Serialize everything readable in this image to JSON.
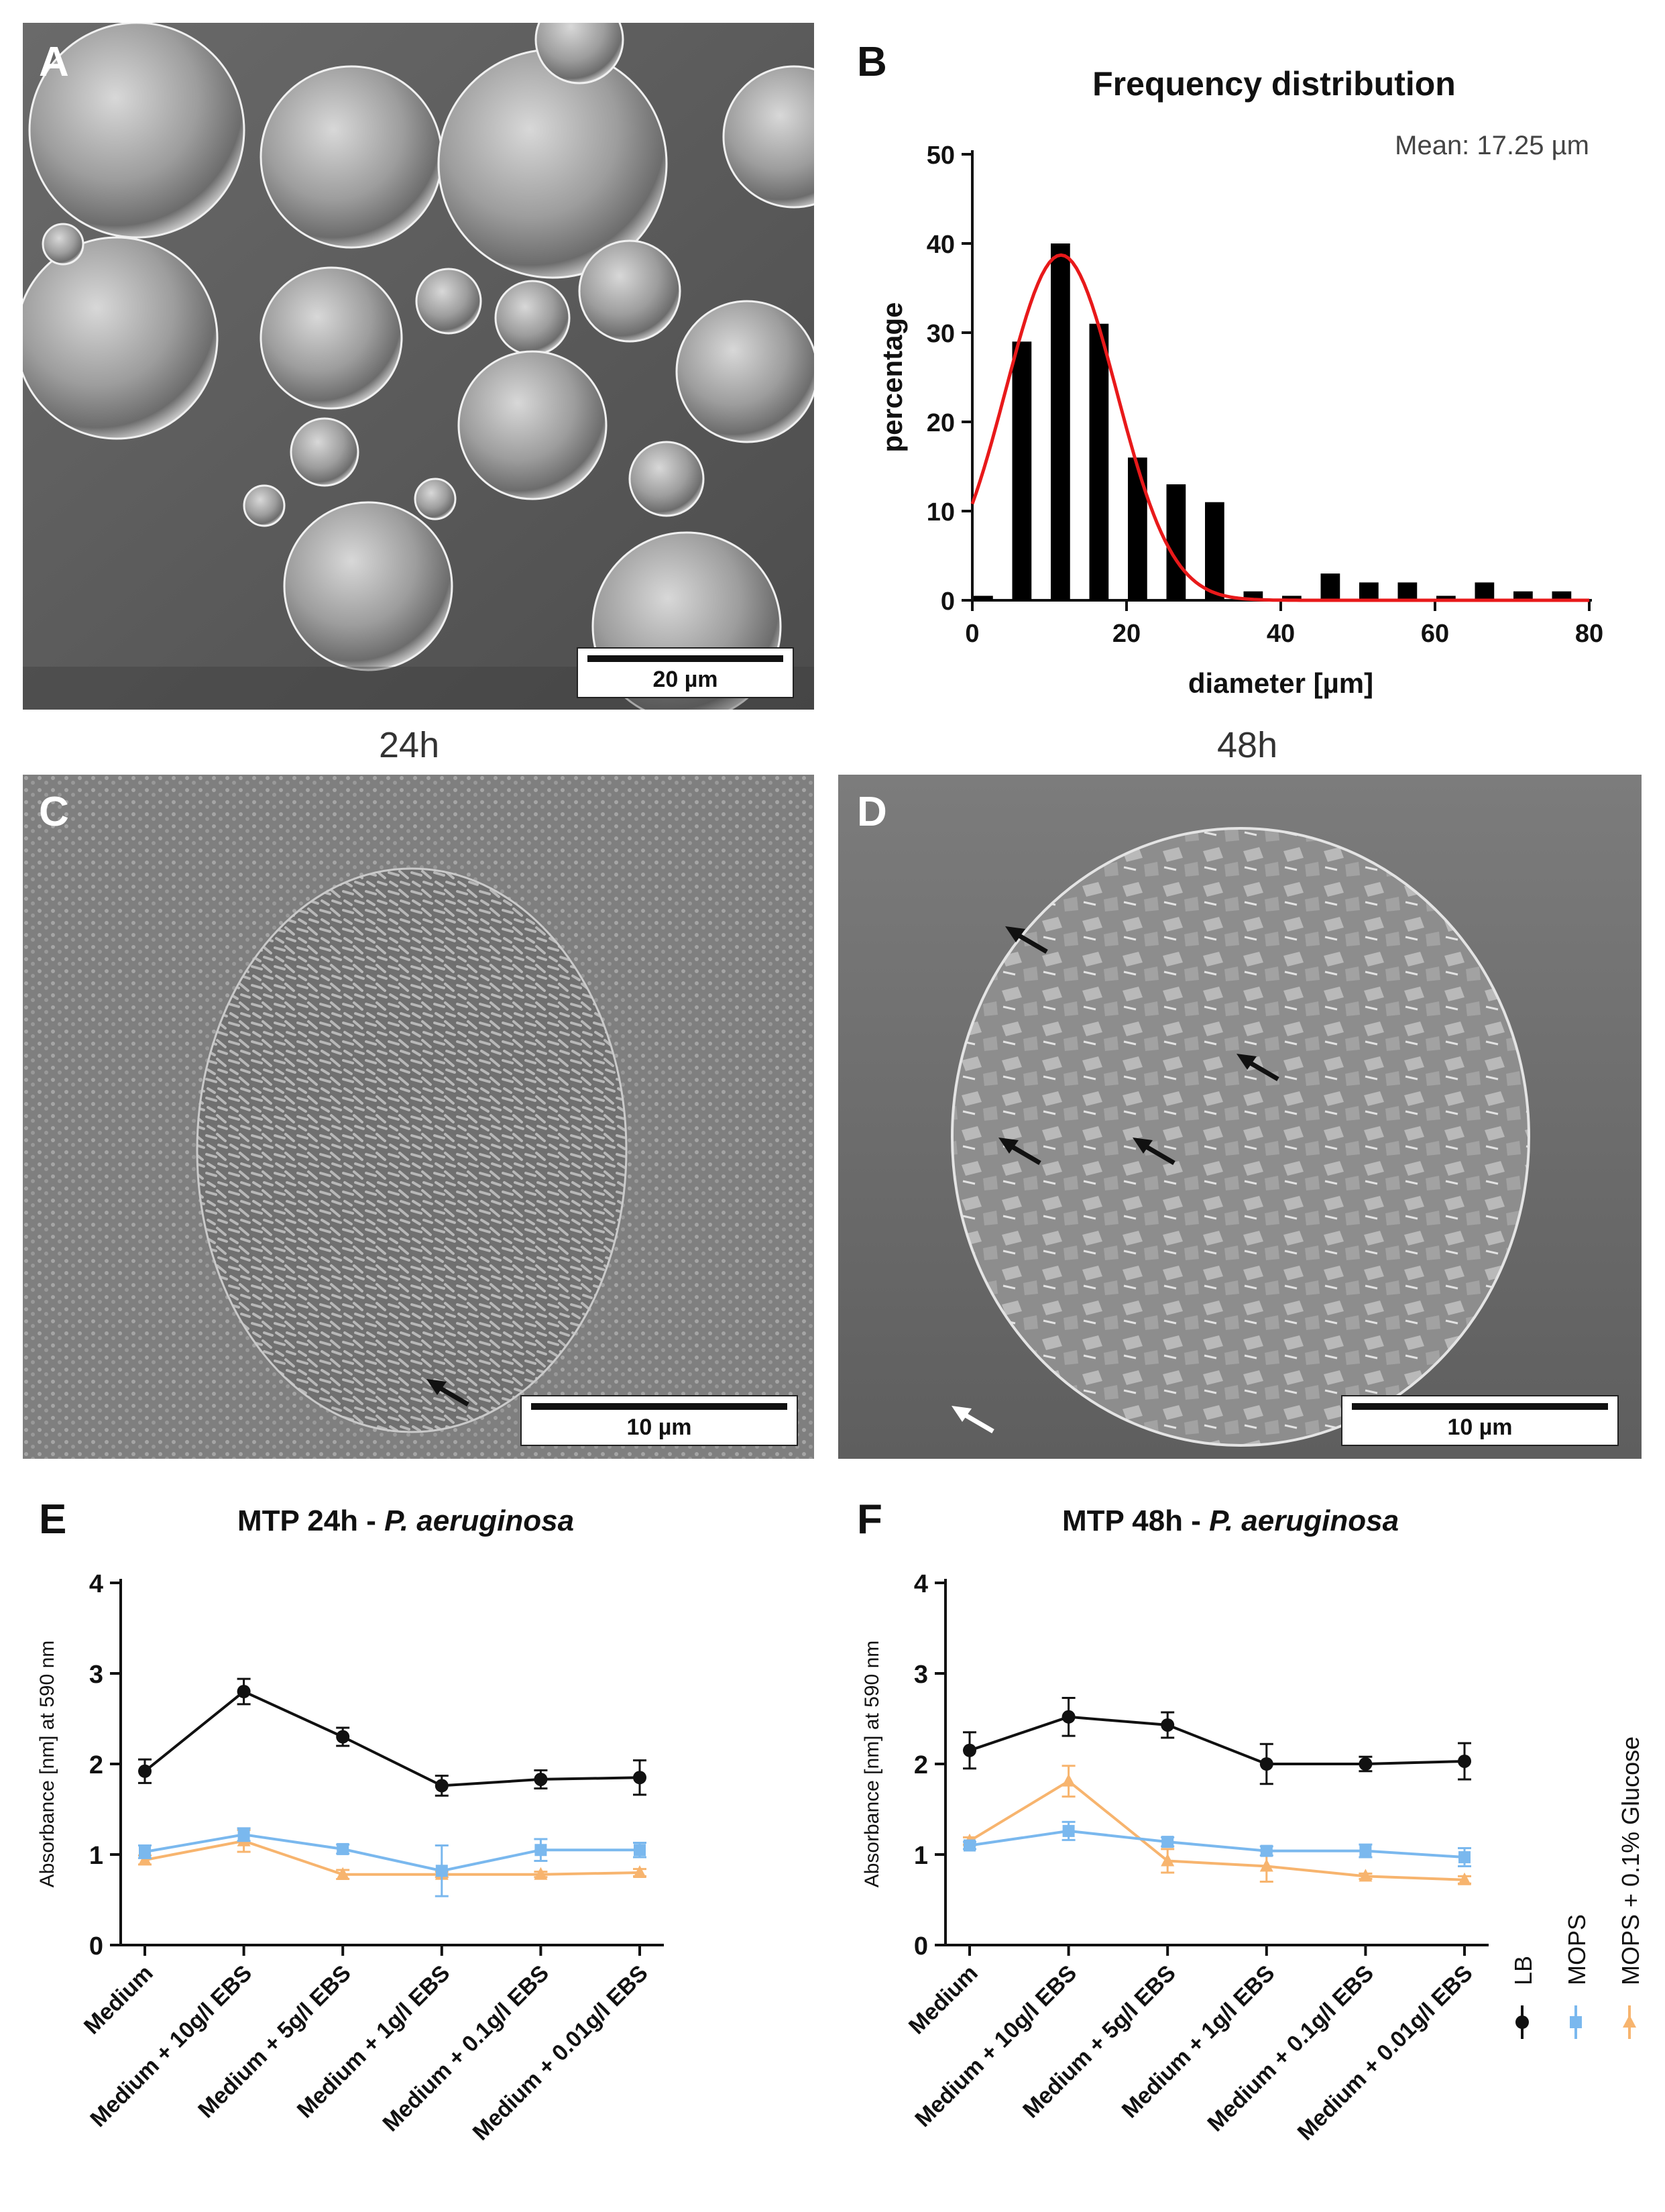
{
  "panels": {
    "A": {
      "letter": "A",
      "scalebar": "20 µm"
    },
    "B": {
      "letter": "B"
    },
    "C": {
      "letter": "C",
      "scalebar": "10 µm",
      "time": "24h"
    },
    "D": {
      "letter": "D",
      "scalebar": "10 µm",
      "time": "48h"
    },
    "E": {
      "letter": "E"
    },
    "F": {
      "letter": "F"
    }
  },
  "colors": {
    "bars": "#000000",
    "fit": "#e8191a",
    "LB": "#111111",
    "MOPS": "#7ab8ee",
    "MOPS_glucose": "#f7b46e"
  },
  "chart_data": [
    {
      "id": "B",
      "type": "bar",
      "title": "Frequency distribution",
      "annotation": "Mean: 17.25 µm",
      "xlabel": "diameter [µm]",
      "ylabel": "percentage",
      "xlim": [
        0,
        80
      ],
      "ylim": [
        0,
        50
      ],
      "xticks": [
        0,
        20,
        40,
        60,
        80
      ],
      "yticks": [
        0,
        10,
        20,
        30,
        40,
        50
      ],
      "x": [
        0,
        5,
        10,
        15,
        20,
        25,
        30,
        35,
        40,
        45,
        50,
        55,
        60,
        65,
        70,
        75
      ],
      "values": [
        0.5,
        29,
        40,
        31,
        16,
        13,
        11,
        1,
        0.5,
        3,
        2,
        2,
        0.5,
        2,
        1,
        1
      ],
      "fit": {
        "type": "gaussian",
        "amplitude": 38.7,
        "center": 11.5,
        "sigma": 7.2
      }
    },
    {
      "id": "E",
      "type": "line",
      "title_main": "MTP 24h - ",
      "title_italic": "P. aeruginosa",
      "ylabel": "Absorbance [nm] at 590 nm",
      "ylim": [
        0,
        4
      ],
      "yticks": [
        0,
        1,
        2,
        3,
        4
      ],
      "categories": [
        "Medium",
        "Medium + 10g/l EBS",
        "Medium + 5g/l EBS",
        "Medium + 1g/l EBS",
        "Medium + 0.1g/l EBS",
        "Medium + 0.01g/l EBS"
      ],
      "series": [
        {
          "name": "LB",
          "values": [
            1.92,
            2.8,
            2.3,
            1.76,
            1.83,
            1.85
          ],
          "errors": [
            0.13,
            0.14,
            0.1,
            0.11,
            0.1,
            0.19
          ]
        },
        {
          "name": "MOPS",
          "values": [
            1.03,
            1.22,
            1.06,
            0.82,
            1.05,
            1.05
          ],
          "errors": [
            0.07,
            0.07,
            0.05,
            0.28,
            0.12,
            0.08
          ]
        },
        {
          "name": "MOPS + 0.1% Glucose",
          "values": [
            0.94,
            1.15,
            0.78,
            0.78,
            0.78,
            0.8
          ],
          "errors": [
            0.05,
            0.12,
            0.05,
            0.03,
            0.03,
            0.04
          ]
        }
      ]
    },
    {
      "id": "F",
      "type": "line",
      "title_main": "MTP 48h - ",
      "title_italic": "P. aeruginosa",
      "ylabel": "Absorbance [nm] at 590 nm",
      "ylim": [
        0,
        4
      ],
      "yticks": [
        0,
        1,
        2,
        3,
        4
      ],
      "categories": [
        "Medium",
        "Medium + 10g/l EBS",
        "Medium + 5g/l EBS",
        "Medium + 1g/l EBS",
        "Medium + 0.1g/l EBS",
        "Medium + 0.01g/l EBS"
      ],
      "series": [
        {
          "name": "LB",
          "values": [
            2.15,
            2.52,
            2.43,
            2.0,
            2.0,
            2.03
          ],
          "errors": [
            0.2,
            0.21,
            0.14,
            0.22,
            0.08,
            0.2
          ]
        },
        {
          "name": "MOPS",
          "values": [
            1.1,
            1.26,
            1.14,
            1.04,
            1.04,
            0.97
          ],
          "errors": [
            0.04,
            0.1,
            0.05,
            0.05,
            0.07,
            0.1
          ]
        },
        {
          "name": "MOPS + 0.1% Glucose",
          "values": [
            1.15,
            1.81,
            0.93,
            0.87,
            0.76,
            0.72
          ],
          "errors": [
            0.04,
            0.17,
            0.13,
            0.17,
            0.03,
            0.04
          ]
        }
      ]
    }
  ],
  "legend": [
    "LB",
    "MOPS",
    "MOPS + 0.1% Glucose"
  ]
}
